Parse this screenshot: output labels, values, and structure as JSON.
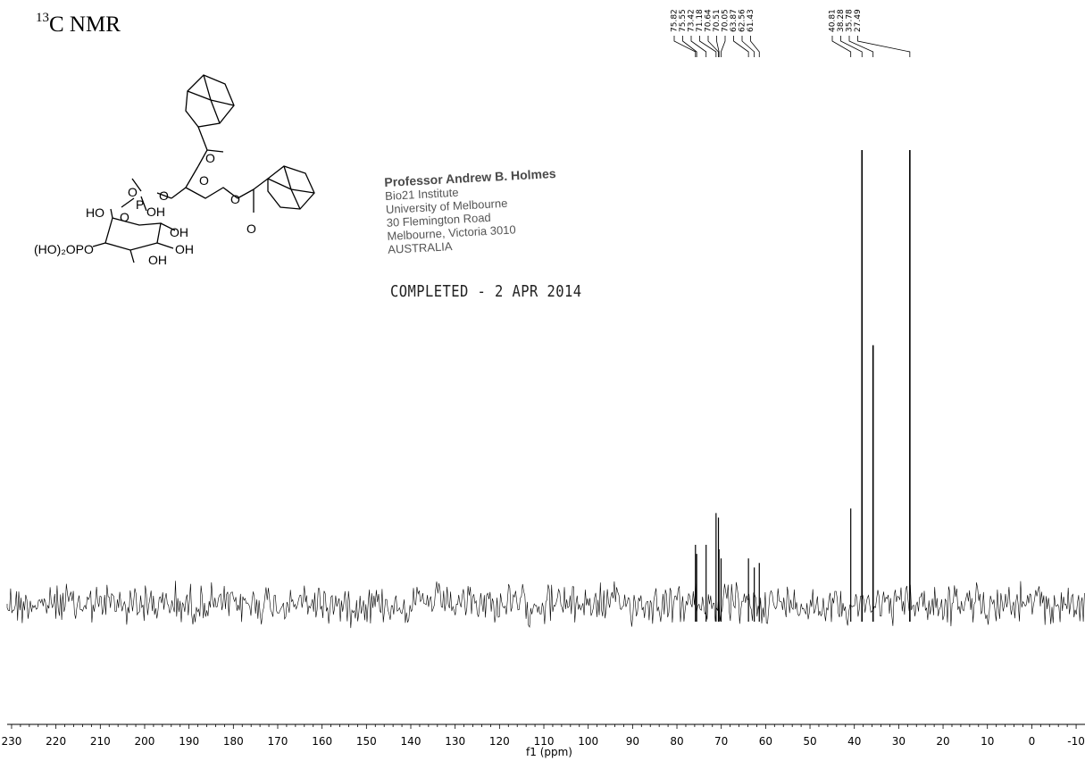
{
  "header": {
    "title_sup": "13",
    "title_main": "C NMR"
  },
  "stamp": {
    "line1": "Professor Andrew B. Holmes",
    "line2": "Bio21 Institute",
    "line3": "University of Melbourne",
    "line4": "30 Flemington Road",
    "line5": "Melbourne, Victoria 3010",
    "line6": "AUSTRALIA"
  },
  "completed_text": "COMPLETED - 2 APR 2014",
  "structure": {
    "label_ho_top": "HO",
    "label_hoopo": "(HO)₂OPO",
    "label_oh": "OH",
    "label_p": "P",
    "label_o": "O"
  },
  "chart_data": {
    "type": "line",
    "title": "13C NMR",
    "xlabel": "f1 (ppm)",
    "ylabel": "",
    "xlim": [
      231,
      -12
    ],
    "x_reversed": true,
    "x_ticks": [
      230,
      220,
      210,
      200,
      190,
      180,
      170,
      160,
      150,
      140,
      130,
      120,
      110,
      100,
      90,
      80,
      70,
      60,
      50,
      40,
      30,
      20,
      10,
      0,
      -10
    ],
    "peak_labels": [
      "75.82",
      "75.55",
      "73.42",
      "71.18",
      "70.64",
      "70.51",
      "70.05",
      "63.87",
      "62.56",
      "61.43",
      "40.81",
      "38.28",
      "35.78",
      "27.49"
    ],
    "peaks": [
      {
        "ppm": 75.82,
        "intensity": 0.13
      },
      {
        "ppm": 75.55,
        "intensity": 0.11
      },
      {
        "ppm": 73.42,
        "intensity": 0.13
      },
      {
        "ppm": 71.18,
        "intensity": 0.2
      },
      {
        "ppm": 70.64,
        "intensity": 0.19
      },
      {
        "ppm": 70.51,
        "intensity": 0.12
      },
      {
        "ppm": 70.05,
        "intensity": 0.1
      },
      {
        "ppm": 63.87,
        "intensity": 0.1
      },
      {
        "ppm": 62.56,
        "intensity": 0.08
      },
      {
        "ppm": 61.43,
        "intensity": 0.09
      },
      {
        "ppm": 40.81,
        "intensity": 0.21
      },
      {
        "ppm": 38.28,
        "intensity": 1.0
      },
      {
        "ppm": 35.78,
        "intensity": 0.57
      },
      {
        "ppm": 27.49,
        "intensity": 1.0
      }
    ],
    "baseline_noise": 0.04,
    "grid": false,
    "line_color": "#000000"
  }
}
